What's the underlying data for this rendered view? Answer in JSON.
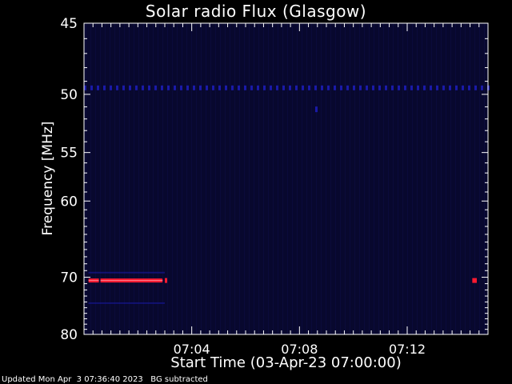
{
  "title": "Solar radio Flux (Glasgow)",
  "footer": "Updated Mon Apr  3 07:36:40 2023   BG subtracted",
  "chart_data": {
    "type": "heatmap",
    "title": "Solar radio Flux (Glasgow)",
    "xlabel": "Start Time (03-Apr-23 07:00:00)",
    "ylabel": "Frequency [MHz]",
    "ylim": [
      45,
      80
    ],
    "y_scale": "reciprocal",
    "y_ticks": [
      45,
      50,
      55,
      60,
      70,
      80
    ],
    "xlim": [
      "07:00:00",
      "07:15:00"
    ],
    "x_ticks": [
      "07:04",
      "07:08",
      "07:12"
    ],
    "colors": {
      "background": "#000000",
      "field": "#08082e",
      "weak": "#1a1aa8",
      "strong": "#ff1a30"
    },
    "features": [
      {
        "kind": "band",
        "level": "weak",
        "freq_mhz": 49.5,
        "start": "07:00:00",
        "end": "07:15:00"
      },
      {
        "kind": "band",
        "level": "strong",
        "freq_mhz": 70.5,
        "start": "07:00:10",
        "end": "07:02:55"
      },
      {
        "kind": "spot",
        "level": "strong",
        "freq_mhz": 70.5,
        "start": "07:03:00",
        "end": "07:03:05"
      },
      {
        "kind": "spot",
        "level": "strong",
        "freq_mhz": 70.5,
        "start": "07:14:25",
        "end": "07:14:35"
      },
      {
        "kind": "spot",
        "level": "weak",
        "freq_mhz": 51.2,
        "start": "07:08:35",
        "end": "07:08:40"
      },
      {
        "kind": "band",
        "level": "weak",
        "freq_mhz": 69.3,
        "start": "07:00:10",
        "end": "07:03:00"
      },
      {
        "kind": "band",
        "level": "weak",
        "freq_mhz": 74.2,
        "start": "07:00:10",
        "end": "07:03:00"
      }
    ]
  }
}
